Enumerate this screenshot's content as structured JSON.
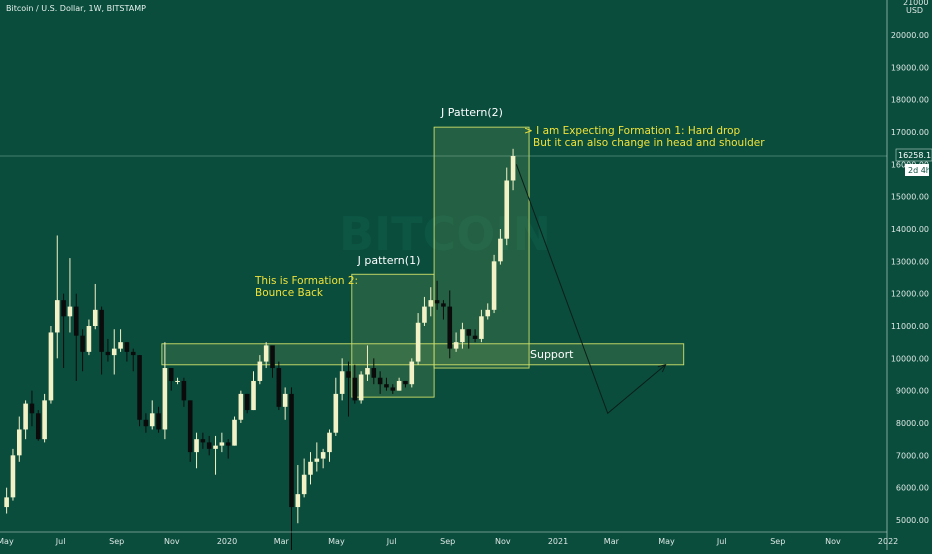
{
  "header": {
    "symbol_line": "Bitcoin / U.S. Dollar, 1W, BITSTAMP",
    "axis_top_partial": "21000",
    "currency": "USD"
  },
  "watermark": "BITCOIN",
  "price_tag": {
    "value": "16258.11",
    "countdown": "2d 4h",
    "partial": "161"
  },
  "annotations": {
    "j_pattern_2": "J Pattern(2)",
    "j_pattern_1": "J pattern(1)",
    "formation_1_line1": "> I am Expecting Formation 1: Hard drop",
    "formation_1_line2": "But it can also change in head and shoulder",
    "formation_2_line1": "This is Formation 2:",
    "formation_2_line2": "Bounce Back",
    "support": "Support"
  },
  "colors": {
    "background": "#0a4d3d",
    "candle_up": "#f2f2c6",
    "candle_down": "#0b0b0b",
    "annotation_text": "#f0e23a",
    "box_border": "#cfe06a",
    "projection_line": "#0b1f18"
  },
  "chart_data": {
    "type": "candlestick",
    "title": "Bitcoin / U.S. Dollar, 1W, BITSTAMP",
    "y_axis": {
      "unit": "USD",
      "range": [
        4800,
        21200
      ],
      "ticks": [
        5000,
        6000,
        7000,
        8000,
        9000,
        10000,
        11000,
        12000,
        13000,
        14000,
        15000,
        16000,
        17000,
        18000,
        19000,
        20000
      ],
      "tick_labels": [
        "5000.00",
        "6000.00",
        "7000.00",
        "8000.00",
        "9000.00",
        "10000.00",
        "11000.00",
        "12000.00",
        "13000.00",
        "14000.00",
        "15000.00",
        "16000.00",
        "17000.00",
        "18000.00",
        "19000.00",
        "20000.00"
      ]
    },
    "x_axis": {
      "labels": [
        "May",
        "Jul",
        "Sep",
        "Nov",
        "2020",
        "Mar",
        "May",
        "Jul",
        "Sep",
        "Nov",
        "2021",
        "Mar",
        "May",
        "Jul",
        "Sep",
        "Nov",
        "2022"
      ],
      "label_dates": [
        "2019-05-01",
        "2019-07-01",
        "2019-09-01",
        "2019-11-01",
        "2020-01-01",
        "2020-03-01",
        "2020-05-01",
        "2020-07-01",
        "2020-09-01",
        "2020-11-01",
        "2021-01-01",
        "2021-03-01",
        "2021-05-01",
        "2021-07-01",
        "2021-09-01",
        "2021-11-01",
        "2022-01-01"
      ],
      "range": [
        "2019-04-29",
        "2022-01-20"
      ]
    },
    "grid": false,
    "current_price": 16258.11,
    "candles": [
      [
        "2019-04-29",
        5400,
        5700,
        5200,
        6000
      ],
      [
        "2019-05-06",
        5700,
        7000,
        5600,
        7200
      ],
      [
        "2019-05-13",
        7000,
        7800,
        6800,
        8200
      ],
      [
        "2019-05-20",
        7800,
        8600,
        7500,
        8700
      ],
      [
        "2019-05-27",
        8600,
        8300,
        7900,
        9000
      ],
      [
        "2019-06-03",
        8300,
        7500,
        7450,
        8400
      ],
      [
        "2019-06-10",
        7500,
        8700,
        7400,
        8900
      ],
      [
        "2019-06-17",
        8700,
        10800,
        8600,
        11000
      ],
      [
        "2019-06-24",
        10800,
        11800,
        10000,
        13800
      ],
      [
        "2019-07-01",
        11800,
        11300,
        9700,
        12000
      ],
      [
        "2019-07-08",
        11300,
        11600,
        10800,
        13100
      ],
      [
        "2019-07-15",
        11600,
        10700,
        9300,
        12000
      ],
      [
        "2019-07-22",
        10700,
        10200,
        9600,
        10900
      ],
      [
        "2019-07-29",
        10200,
        11000,
        10100,
        11200
      ],
      [
        "2019-08-05",
        11000,
        11500,
        10900,
        12300
      ],
      [
        "2019-08-12",
        11500,
        10200,
        9500,
        11600
      ],
      [
        "2019-08-19",
        10200,
        10100,
        9900,
        10600
      ],
      [
        "2019-08-26",
        10100,
        10300,
        9500,
        10900
      ],
      [
        "2019-09-02",
        10300,
        10500,
        10200,
        10900
      ],
      [
        "2019-09-09",
        10500,
        10200,
        9900,
        10500
      ],
      [
        "2019-09-16",
        10200,
        10100,
        9600,
        10300
      ],
      [
        "2019-09-23",
        10100,
        8100,
        7900,
        10100
      ],
      [
        "2019-09-30",
        8100,
        7900,
        7700,
        8300
      ],
      [
        "2019-10-07",
        7900,
        8300,
        7800,
        8700
      ],
      [
        "2019-10-14",
        8300,
        7800,
        7700,
        8500
      ],
      [
        "2019-10-21",
        7800,
        9700,
        7500,
        10500
      ],
      [
        "2019-10-28",
        9700,
        9300,
        9000,
        9700
      ],
      [
        "2019-11-04",
        9300,
        9300,
        9200,
        9400
      ],
      [
        "2019-11-11",
        9300,
        8700,
        8500,
        9400
      ],
      [
        "2019-11-18",
        8700,
        7100,
        6800,
        8700
      ],
      [
        "2019-11-25",
        7100,
        7500,
        6600,
        7700
      ],
      [
        "2019-12-02",
        7500,
        7400,
        7200,
        7700
      ],
      [
        "2019-12-09",
        7400,
        7200,
        7000,
        7600
      ],
      [
        "2019-12-16",
        7200,
        7300,
        6400,
        7600
      ],
      [
        "2019-12-23",
        7300,
        7400,
        7100,
        7700
      ],
      [
        "2019-12-30",
        7400,
        7300,
        6900,
        7500
      ],
      [
        "2020-01-06",
        7300,
        8100,
        7300,
        8200
      ],
      [
        "2020-01-13",
        8100,
        8900,
        8000,
        9000
      ],
      [
        "2020-01-20",
        8900,
        8400,
        8300,
        8900
      ],
      [
        "2020-01-27",
        8400,
        9300,
        8400,
        9600
      ],
      [
        "2020-02-03",
        9300,
        9900,
        9200,
        10100
      ],
      [
        "2020-02-10",
        9900,
        10400,
        9700,
        10500
      ],
      [
        "2020-02-17",
        10400,
        9700,
        9400,
        10300
      ],
      [
        "2020-02-24",
        9700,
        8500,
        8400,
        9900
      ],
      [
        "2020-03-02",
        8500,
        8900,
        8100,
        9100
      ],
      [
        "2020-03-09",
        8900,
        5400,
        3850,
        9100
      ],
      [
        "2020-03-16",
        5400,
        5800,
        4900,
        6700
      ],
      [
        "2020-03-23",
        5800,
        6400,
        5700,
        6900
      ],
      [
        "2020-03-30",
        6400,
        6800,
        6100,
        7100
      ],
      [
        "2020-04-06",
        6800,
        6900,
        6500,
        7400
      ],
      [
        "2020-04-13",
        6900,
        7100,
        6600,
        7200
      ],
      [
        "2020-04-20",
        7100,
        7700,
        6800,
        7800
      ],
      [
        "2020-04-27",
        7700,
        8900,
        7600,
        9400
      ],
      [
        "2020-05-04",
        8900,
        9600,
        8700,
        10000
      ],
      [
        "2020-05-11",
        9600,
        9400,
        8200,
        9900
      ],
      [
        "2020-05-18",
        9400,
        8700,
        8600,
        9800
      ],
      [
        "2020-05-25",
        8700,
        9500,
        8600,
        9600
      ],
      [
        "2020-06-01",
        9500,
        9700,
        9300,
        10400
      ],
      [
        "2020-06-08",
        9700,
        9400,
        9200,
        10000
      ],
      [
        "2020-06-15",
        9400,
        9200,
        8900,
        9600
      ],
      [
        "2020-06-22",
        9200,
        9100,
        9000,
        9400
      ],
      [
        "2020-06-29",
        9100,
        9000,
        8900,
        9200
      ],
      [
        "2020-07-06",
        9000,
        9300,
        9000,
        9400
      ],
      [
        "2020-07-13",
        9300,
        9200,
        9100,
        9300
      ],
      [
        "2020-07-20",
        9200,
        9900,
        9100,
        10000
      ],
      [
        "2020-07-27",
        9900,
        11100,
        9800,
        11400
      ],
      [
        "2020-08-03",
        11100,
        11600,
        11000,
        11900
      ],
      [
        "2020-08-10",
        11600,
        11800,
        11300,
        12200
      ],
      [
        "2020-08-17",
        11800,
        11700,
        11500,
        12400
      ],
      [
        "2020-08-24",
        11700,
        11600,
        11200,
        11800
      ],
      [
        "2020-08-31",
        11600,
        10300,
        10000,
        12100
      ],
      [
        "2020-09-07",
        10300,
        10500,
        10200,
        10800
      ],
      [
        "2020-09-14",
        10500,
        10900,
        10300,
        11100
      ],
      [
        "2020-09-21",
        10900,
        10700,
        10300,
        10900
      ],
      [
        "2020-09-28",
        10700,
        10600,
        10500,
        10900
      ],
      [
        "2020-10-05",
        10600,
        11300,
        10500,
        11500
      ],
      [
        "2020-10-12",
        11300,
        11500,
        11200,
        11700
      ],
      [
        "2020-10-19",
        11500,
        13000,
        11400,
        13200
      ],
      [
        "2020-10-26",
        13000,
        13700,
        12900,
        14000
      ],
      [
        "2020-11-02",
        13700,
        15500,
        13500,
        15900
      ],
      [
        "2020-11-09",
        15500,
        16258.11,
        15200,
        16480
      ]
    ],
    "annotations": [
      {
        "text": "J pattern(1)",
        "type": "box",
        "x_range": [
          "2020-05-18",
          "2020-08-17"
        ],
        "y_range": [
          8800,
          12600
        ]
      },
      {
        "text": "J Pattern(2)",
        "type": "box",
        "x_range": [
          "2020-08-17",
          "2020-11-30"
        ],
        "y_range": [
          9700,
          17150
        ]
      },
      {
        "text": "Support",
        "type": "box",
        "x_range": [
          "2019-10-21",
          "2021-05-20"
        ],
        "y_range": [
          9800,
          10450
        ]
      },
      {
        "text": "> I am Expecting Formation 1: Hard drop / But it can also change in head and shoulder",
        "type": "projection",
        "points": [
          [
            "2020-11-16",
            16000
          ],
          [
            "2021-02-25",
            8300
          ],
          [
            "2021-04-30",
            9800
          ]
        ]
      },
      {
        "text": "This is Formation 2: Bounce Back",
        "type": "label"
      }
    ]
  }
}
